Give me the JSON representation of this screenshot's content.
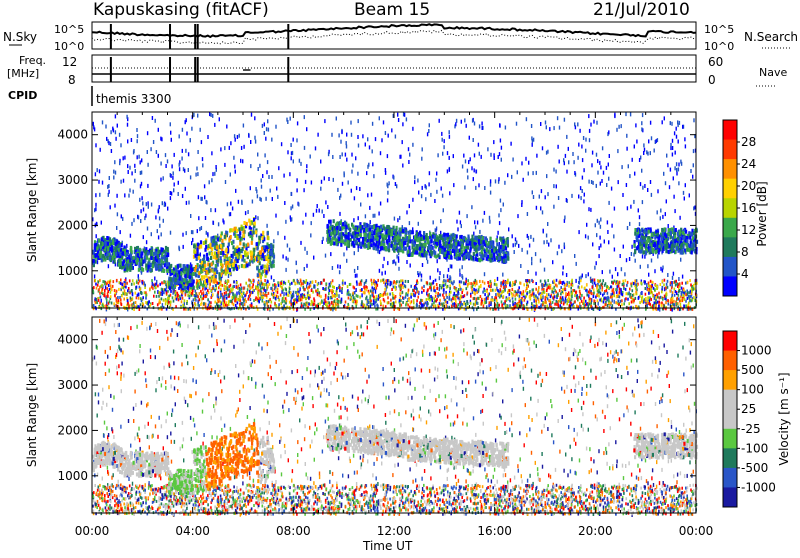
{
  "header": {
    "station": "Kapuskasing (fitACF)",
    "beam": "Beam 15",
    "date": "21/Jul/2010"
  },
  "top_panels": {
    "nsky_label": "N.Sky",
    "nsky_ticks": [
      "10^5",
      "10^0"
    ],
    "nsearch_label": "N.Search",
    "nsearch_ticks": [
      "10^5",
      "10^0"
    ],
    "freq_label_1": "Freq.",
    "freq_label_2": "[MHz]",
    "freq_ticks": [
      "12",
      "8"
    ],
    "nave_label": "Nave",
    "nave_ticks": [
      "60",
      "0"
    ],
    "cpid_label": "CPID",
    "cpid_value": "themis 3300"
  },
  "chart_data": [
    {
      "type": "heatmap",
      "name": "power",
      "ylabel": "Slant Range [km]",
      "yticks": [
        1000,
        2000,
        3000,
        4000
      ],
      "ylim": [
        180,
        4500
      ],
      "xlim": [
        0,
        24
      ],
      "colorbar_label": "Power [dB]",
      "colorbar_ticks": [
        4,
        8,
        12,
        16,
        20,
        24,
        28
      ],
      "colorbar_range": [
        0,
        32
      ],
      "colors": [
        "#0000ff",
        "#2255c8",
        "#1f7a5c",
        "#3aa84a",
        "#b8d400",
        "#ffd000",
        "#ff9000",
        "#ff3a00",
        "#ff0000"
      ]
    },
    {
      "type": "heatmap",
      "name": "velocity",
      "ylabel": "Slant Range [km]",
      "yticks": [
        1000,
        2000,
        3000,
        4000
      ],
      "ylim": [
        180,
        4500
      ],
      "xlim": [
        0,
        24
      ],
      "colorbar_label": "Velocity [m s⁻¹]",
      "colorbar_ticks": [
        "1000",
        "500",
        "100",
        "25",
        "-25",
        "-100",
        "-500",
        "-1000"
      ],
      "colors": [
        "#1a1aa0",
        "#2a56c8",
        "#1f7a5c",
        "#5ac840",
        "#c8c8c8",
        "#c8c8c8",
        "#ffa000",
        "#ff6000",
        "#ff0000"
      ]
    }
  ],
  "x_axis": {
    "ticks": [
      "00:00",
      "04:00",
      "08:00",
      "12:00",
      "16:00",
      "20:00",
      "00:00"
    ],
    "label": "Time UT"
  }
}
